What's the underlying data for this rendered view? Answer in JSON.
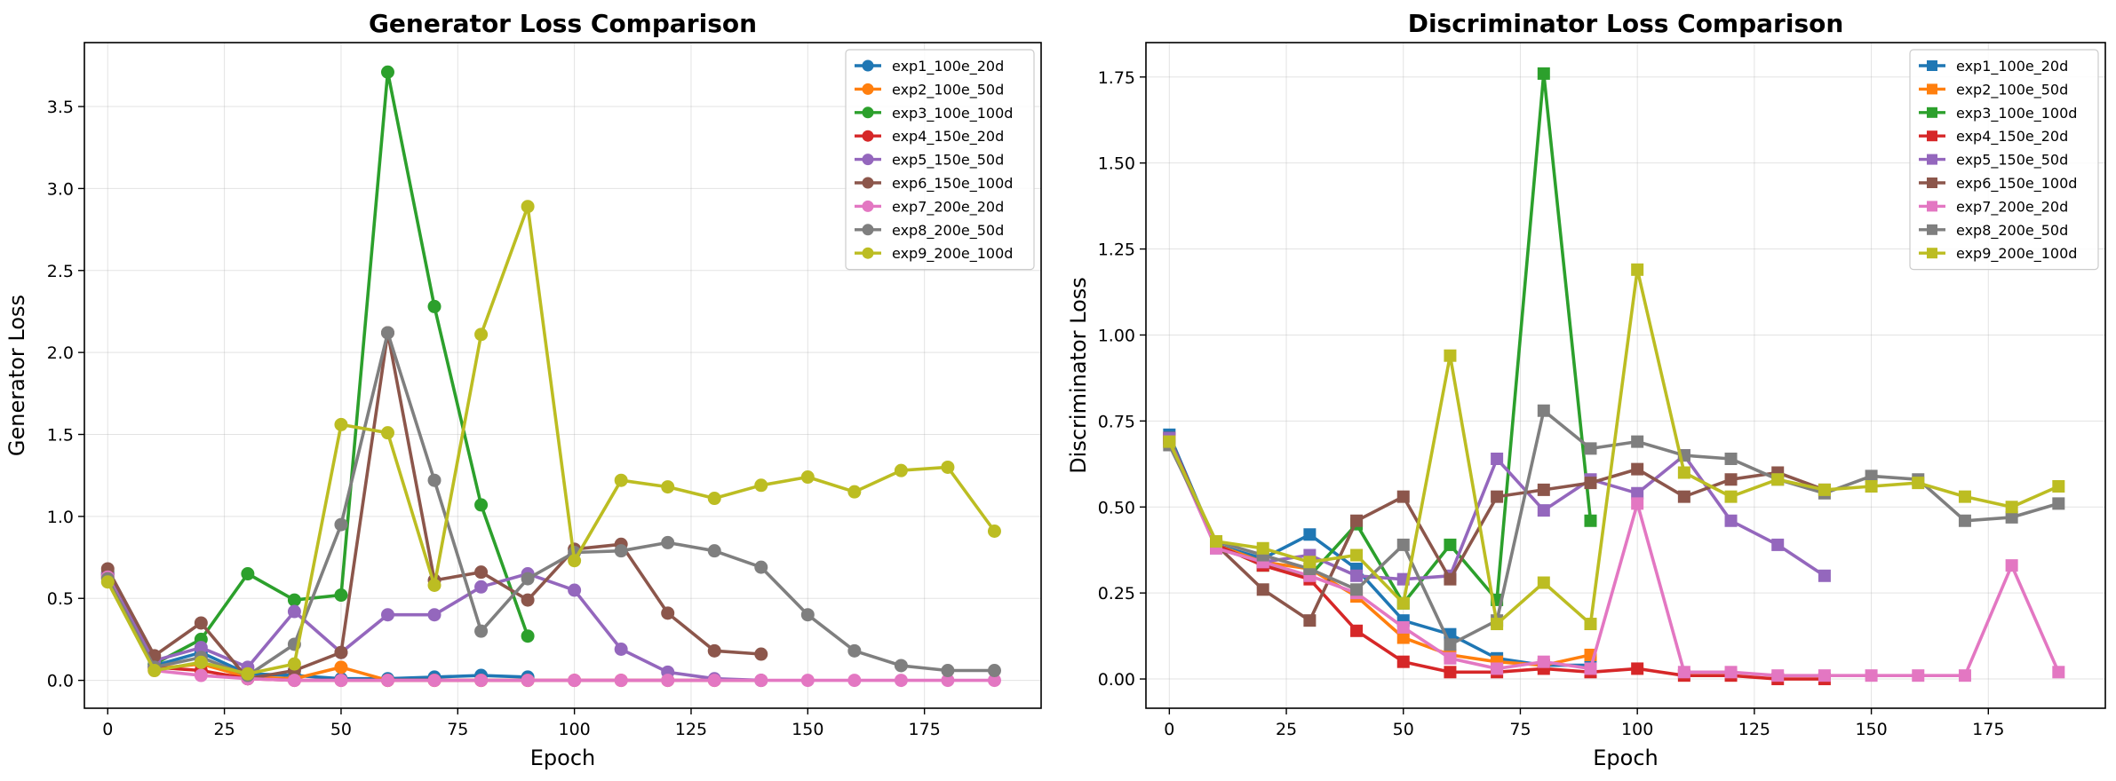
{
  "chart_data": [
    {
      "type": "line",
      "title": "Generator Loss Comparison",
      "xlabel": "Epoch",
      "ylabel": "Generator Loss",
      "xlim": [
        -5,
        200
      ],
      "ylim": [
        -0.17,
        3.89
      ],
      "xticks": [
        0,
        25,
        50,
        75,
        100,
        125,
        150,
        175
      ],
      "yticks": [
        0.0,
        0.5,
        1.0,
        1.5,
        2.0,
        2.5,
        3.0,
        3.5
      ],
      "ytick_labels": [
        "0.0",
        "0.5",
        "1.0",
        "1.5",
        "2.0",
        "2.5",
        "3.0",
        "3.5"
      ],
      "marker": "circle",
      "grid": true,
      "legend_position": "top-right",
      "series": [
        {
          "name": "exp1_100e_20d",
          "color": "#1f77b4",
          "x": [
            0,
            10,
            20,
            30,
            40,
            50,
            60,
            70,
            80,
            90
          ],
          "y": [
            0.64,
            0.09,
            0.17,
            0.04,
            0.03,
            0.01,
            0.01,
            0.02,
            0.03,
            0.02
          ]
        },
        {
          "name": "exp2_100e_50d",
          "color": "#ff7f0e",
          "x": [
            0,
            10,
            20,
            30,
            40,
            50,
            60,
            70,
            80,
            90
          ],
          "y": [
            0.63,
            0.07,
            0.1,
            0.02,
            0.01,
            0.08,
            0.0,
            0.0,
            0.0,
            0.0
          ]
        },
        {
          "name": "exp3_100e_100d",
          "color": "#2ca02c",
          "x": [
            0,
            10,
            20,
            30,
            40,
            50,
            60,
            70,
            80,
            90
          ],
          "y": [
            0.66,
            0.1,
            0.25,
            0.65,
            0.49,
            0.52,
            3.71,
            2.28,
            1.07,
            0.27
          ]
        },
        {
          "name": "exp4_150e_20d",
          "color": "#d62728",
          "x": [
            0,
            10,
            20,
            30,
            40,
            50,
            60,
            70,
            80,
            90,
            100,
            110,
            120,
            130,
            140
          ],
          "y": [
            0.65,
            0.08,
            0.06,
            0.01,
            0.0,
            0.0,
            0.0,
            0.0,
            0.0,
            0.0,
            0.0,
            0.0,
            0.0,
            0.0,
            0.0
          ]
        },
        {
          "name": "exp5_150e_50d",
          "color": "#9467bd",
          "x": [
            0,
            10,
            20,
            30,
            40,
            50,
            60,
            70,
            80,
            90,
            100,
            110,
            120,
            130,
            140
          ],
          "y": [
            0.65,
            0.12,
            0.2,
            0.08,
            0.42,
            0.17,
            0.4,
            0.4,
            0.57,
            0.65,
            0.55,
            0.19,
            0.05,
            0.01,
            0.0
          ]
        },
        {
          "name": "exp6_150e_100d",
          "color": "#8c564b",
          "x": [
            0,
            10,
            20,
            30,
            40,
            50,
            60,
            70,
            80,
            90,
            100,
            110,
            120,
            130,
            140
          ],
          "y": [
            0.68,
            0.15,
            0.35,
            0.01,
            0.06,
            0.17,
            2.12,
            0.61,
            0.66,
            0.49,
            0.8,
            0.83,
            0.41,
            0.18,
            0.16
          ]
        },
        {
          "name": "exp7_200e_20d",
          "color": "#e377c2",
          "x": [
            0,
            10,
            20,
            30,
            40,
            50,
            60,
            70,
            80,
            90,
            100,
            110,
            120,
            130,
            140,
            150,
            160,
            170,
            180,
            190
          ],
          "y": [
            0.63,
            0.06,
            0.03,
            0.01,
            0.0,
            0.0,
            0.0,
            0.0,
            0.0,
            0.0,
            0.0,
            0.0,
            0.0,
            0.0,
            0.0,
            0.0,
            0.0,
            0.0,
            0.0,
            0.0
          ]
        },
        {
          "name": "exp8_200e_50d",
          "color": "#7f7f7f",
          "x": [
            0,
            10,
            20,
            30,
            40,
            50,
            60,
            70,
            80,
            90,
            100,
            110,
            120,
            130,
            140,
            150,
            160,
            170,
            180,
            190
          ],
          "y": [
            0.62,
            0.08,
            0.14,
            0.03,
            0.22,
            0.95,
            2.12,
            1.22,
            0.3,
            0.62,
            0.78,
            0.79,
            0.84,
            0.79,
            0.69,
            0.4,
            0.18,
            0.09,
            0.06,
            0.06
          ]
        },
        {
          "name": "exp9_200e_100d",
          "color": "#bcbd22",
          "x": [
            0,
            10,
            20,
            30,
            40,
            50,
            60,
            70,
            80,
            90,
            100,
            110,
            120,
            130,
            140,
            150,
            160,
            170,
            180,
            190
          ],
          "y": [
            0.6,
            0.06,
            0.11,
            0.04,
            0.1,
            1.56,
            1.51,
            0.58,
            2.11,
            2.89,
            0.73,
            1.22,
            1.18,
            1.11,
            1.19,
            1.24,
            1.15,
            1.28,
            1.3,
            0.91
          ]
        }
      ]
    },
    {
      "type": "line",
      "title": "Discriminator Loss Comparison",
      "xlabel": "Epoch",
      "ylabel": "Discriminator Loss",
      "xlim": [
        -5,
        200
      ],
      "ylim": [
        -0.085,
        1.85
      ],
      "xticks": [
        0,
        25,
        50,
        75,
        100,
        125,
        150,
        175
      ],
      "yticks": [
        0.0,
        0.25,
        0.5,
        0.75,
        1.0,
        1.25,
        1.5,
        1.75
      ],
      "ytick_labels": [
        "0.00",
        "0.25",
        "0.50",
        "0.75",
        "1.00",
        "1.25",
        "1.50",
        "1.75"
      ],
      "marker": "square",
      "grid": true,
      "legend_position": "top-right",
      "series": [
        {
          "name": "exp1_100e_20d",
          "color": "#1f77b4",
          "x": [
            0,
            10,
            20,
            30,
            40,
            50,
            60,
            70,
            80,
            90
          ],
          "y": [
            0.71,
            0.39,
            0.35,
            0.42,
            0.32,
            0.17,
            0.13,
            0.06,
            0.04,
            0.04
          ]
        },
        {
          "name": "exp2_100e_50d",
          "color": "#ff7f0e",
          "x": [
            0,
            10,
            20,
            30,
            40,
            50,
            60,
            70,
            80,
            90
          ],
          "y": [
            0.7,
            0.39,
            0.34,
            0.32,
            0.24,
            0.12,
            0.07,
            0.05,
            0.04,
            0.07
          ]
        },
        {
          "name": "exp3_100e_100d",
          "color": "#2ca02c",
          "x": [
            0,
            10,
            20,
            30,
            40,
            50,
            60,
            70,
            80,
            90
          ],
          "y": [
            0.69,
            0.39,
            0.33,
            0.3,
            0.45,
            0.22,
            0.39,
            0.23,
            1.76,
            0.46
          ]
        },
        {
          "name": "exp4_150e_20d",
          "color": "#d62728",
          "x": [
            0,
            10,
            20,
            30,
            40,
            50,
            60,
            70,
            80,
            90,
            100,
            110,
            120,
            130,
            140
          ],
          "y": [
            0.7,
            0.39,
            0.33,
            0.29,
            0.14,
            0.05,
            0.02,
            0.02,
            0.03,
            0.02,
            0.03,
            0.01,
            0.01,
            0.0,
            0.0
          ]
        },
        {
          "name": "exp5_150e_50d",
          "color": "#9467bd",
          "x": [
            0,
            10,
            20,
            30,
            40,
            50,
            60,
            70,
            80,
            90,
            100,
            110,
            120,
            130,
            140
          ],
          "y": [
            0.7,
            0.38,
            0.34,
            0.36,
            0.3,
            0.29,
            0.3,
            0.64,
            0.49,
            0.58,
            0.54,
            0.65,
            0.46,
            0.39,
            0.3
          ]
        },
        {
          "name": "exp6_150e_100d",
          "color": "#8c564b",
          "x": [
            0,
            10,
            20,
            30,
            40,
            50,
            60,
            70,
            80,
            90,
            100,
            110,
            120,
            130,
            140
          ],
          "y": [
            0.69,
            0.39,
            0.26,
            0.17,
            0.46,
            0.53,
            0.29,
            0.53,
            0.55,
            0.57,
            0.61,
            0.53,
            0.58,
            0.6,
            0.55
          ]
        },
        {
          "name": "exp7_200e_20d",
          "color": "#e377c2",
          "x": [
            0,
            10,
            20,
            30,
            40,
            50,
            60,
            70,
            80,
            90,
            100,
            110,
            120,
            130,
            140,
            150,
            160,
            170,
            180,
            190
          ],
          "y": [
            0.69,
            0.38,
            0.34,
            0.3,
            0.25,
            0.15,
            0.06,
            0.03,
            0.05,
            0.03,
            0.51,
            0.02,
            0.02,
            0.01,
            0.01,
            0.01,
            0.01,
            0.01,
            0.33,
            0.02
          ]
        },
        {
          "name": "exp8_200e_50d",
          "color": "#7f7f7f",
          "x": [
            0,
            10,
            20,
            30,
            40,
            50,
            60,
            70,
            80,
            90,
            100,
            110,
            120,
            130,
            140,
            150,
            160,
            170,
            180,
            190
          ],
          "y": [
            0.68,
            0.4,
            0.36,
            0.32,
            0.26,
            0.39,
            0.1,
            0.17,
            0.78,
            0.67,
            0.69,
            0.65,
            0.64,
            0.58,
            0.54,
            0.59,
            0.58,
            0.46,
            0.47,
            0.51
          ]
        },
        {
          "name": "exp9_200e_100d",
          "color": "#bcbd22",
          "x": [
            0,
            10,
            20,
            30,
            40,
            50,
            60,
            70,
            80,
            90,
            100,
            110,
            120,
            130,
            140,
            150,
            160,
            170,
            180,
            190
          ],
          "y": [
            0.69,
            0.4,
            0.38,
            0.34,
            0.36,
            0.22,
            0.94,
            0.16,
            0.28,
            0.16,
            1.19,
            0.6,
            0.53,
            0.58,
            0.55,
            0.56,
            0.57,
            0.53,
            0.5,
            0.56
          ]
        }
      ]
    }
  ]
}
